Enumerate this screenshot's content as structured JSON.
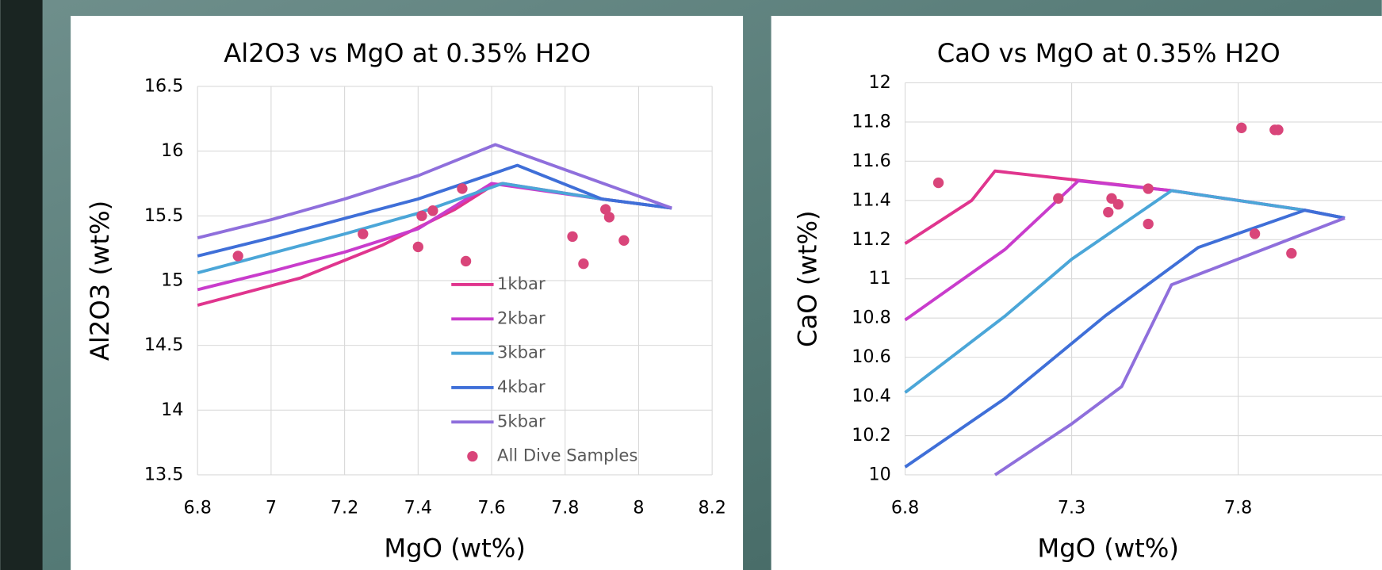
{
  "chart_data": [
    {
      "type": "line",
      "title": "Al2O3 vs MgO at 0.35% H2O",
      "x_label": "MgO (wt%)",
      "y_label": "Al2O3 (wt%)",
      "xlim": [
        6.8,
        8.2
      ],
      "xticks": [
        6.8,
        7,
        7.2,
        7.4,
        7.6,
        7.8,
        8,
        8.2
      ],
      "ylim": [
        13.5,
        16.5
      ],
      "yticks": [
        13.5,
        14,
        14.5,
        15,
        15.5,
        16,
        16.5
      ],
      "grid": true,
      "legend": "lower right",
      "series": [
        {
          "name": "1kbar",
          "type": "line",
          "color": "#e0358e",
          "x": [
            6.8,
            7.08,
            7.3,
            7.5,
            7.6,
            7.63,
            7.9,
            8.09
          ],
          "values": [
            14.81,
            15.02,
            15.27,
            15.55,
            15.73,
            15.75,
            15.63,
            15.56
          ]
        },
        {
          "name": "2kbar",
          "type": "line",
          "color": "#c93ccc",
          "x": [
            6.8,
            7.0,
            7.2,
            7.4,
            7.6,
            7.9,
            8.09
          ],
          "values": [
            14.93,
            15.07,
            15.22,
            15.4,
            15.75,
            15.63,
            15.56
          ]
        },
        {
          "name": "3kbar",
          "type": "line",
          "color": "#4ba6d8",
          "x": [
            6.8,
            7.0,
            7.2,
            7.4,
            7.63,
            7.9,
            8.09
          ],
          "values": [
            15.06,
            15.21,
            15.36,
            15.52,
            15.75,
            15.63,
            15.56
          ]
        },
        {
          "name": "4kbar",
          "type": "line",
          "color": "#3f6fd8",
          "x": [
            6.8,
            7.0,
            7.2,
            7.4,
            7.67,
            7.9,
            8.09
          ],
          "values": [
            15.19,
            15.33,
            15.48,
            15.63,
            15.89,
            15.63,
            15.56
          ]
        },
        {
          "name": "5kbar",
          "type": "line",
          "color": "#8f6fdc",
          "x": [
            6.8,
            7.0,
            7.2,
            7.4,
            7.61,
            8.09
          ],
          "values": [
            15.33,
            15.47,
            15.63,
            15.81,
            16.05,
            15.56
          ]
        },
        {
          "name": "All Dive Samples",
          "type": "scatter",
          "color": "#d9457a",
          "x": [
            6.91,
            7.25,
            7.4,
            7.41,
            7.44,
            7.52,
            7.53,
            7.82,
            7.85,
            7.91,
            7.92,
            7.96
          ],
          "values": [
            15.19,
            15.36,
            15.26,
            15.5,
            15.54,
            15.71,
            15.15,
            15.34,
            15.13,
            15.55,
            15.49,
            15.31
          ]
        }
      ]
    },
    {
      "type": "line",
      "title": "CaO vs MgO at 0.35% H2O",
      "x_label": "MgO (wt%)",
      "y_label": "CaO (wt%)",
      "xlim": [
        6.8,
        8.3
      ],
      "xticks": [
        6.8,
        7.3,
        7.8
      ],
      "ylim": [
        10,
        12
      ],
      "yticks": [
        10,
        10.2,
        10.4,
        10.6,
        10.8,
        11,
        11.2,
        11.4,
        11.6,
        11.8,
        12
      ],
      "grid": true,
      "series": [
        {
          "type": "line",
          "color": "#e0358e",
          "x": [
            6.8,
            7.0,
            7.07,
            7.6,
            8.0,
            8.12
          ],
          "values": [
            11.18,
            11.4,
            11.55,
            11.45,
            11.35,
            11.31
          ]
        },
        {
          "type": "line",
          "color": "#c93ccc",
          "x": [
            6.8,
            7.1,
            7.32,
            7.6,
            8.0,
            8.12
          ],
          "values": [
            10.79,
            11.15,
            11.5,
            11.45,
            11.35,
            11.31
          ]
        },
        {
          "type": "line",
          "color": "#4ba6d8",
          "x": [
            6.8,
            7.1,
            7.3,
            7.6,
            8.0,
            8.12
          ],
          "values": [
            10.42,
            10.81,
            11.1,
            11.45,
            11.35,
            11.31
          ]
        },
        {
          "type": "line",
          "color": "#3f6fd8",
          "x": [
            6.8,
            7.1,
            7.4,
            7.68,
            8.0,
            8.12
          ],
          "values": [
            10.04,
            10.39,
            10.81,
            11.16,
            11.35,
            11.31
          ]
        },
        {
          "type": "line",
          "color": "#8f6fdc",
          "x": [
            7.07,
            7.3,
            7.45,
            7.6,
            8.12
          ],
          "values": [
            10.0,
            10.26,
            10.45,
            10.97,
            11.31
          ]
        },
        {
          "type": "scatter",
          "color": "#d9457a",
          "x": [
            6.9,
            7.26,
            7.41,
            7.42,
            7.44,
            7.53,
            7.53,
            7.81,
            7.85,
            7.91,
            7.92,
            7.96
          ],
          "values": [
            11.49,
            11.41,
            11.34,
            11.41,
            11.38,
            11.46,
            11.28,
            11.77,
            11.23,
            11.76,
            11.76,
            11.13
          ]
        }
      ]
    }
  ]
}
